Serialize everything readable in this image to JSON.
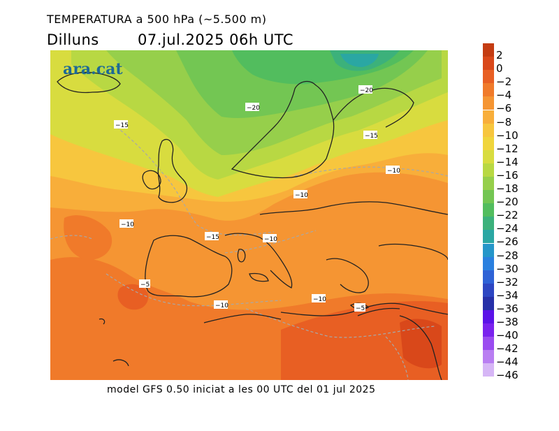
{
  "header": {
    "title": "TEMPERATURA a 500 hPa (~5.500 m)",
    "day": "Dilluns",
    "datetime": "07.jul.2025 06h UTC"
  },
  "logo": "ara.cat",
  "footer": "model GFS 0.50 iniciat a les 00 UTC del 01 jul 2025",
  "colorbar": {
    "labels": [
      "2",
      "0",
      "−2",
      "−4",
      "−6",
      "−8",
      "−10",
      "−12",
      "−14",
      "−16",
      "−18",
      "−20",
      "−22",
      "−24",
      "−26",
      "−28",
      "−30",
      "−32",
      "−34",
      "−36",
      "−38",
      "−40",
      "−42",
      "−44",
      "−46"
    ],
    "colors": [
      "#c43c12",
      "#d9481a",
      "#e85f23",
      "#f07a2a",
      "#f59533",
      "#f8ae3a",
      "#f7c63e",
      "#f0d53c",
      "#d8dc3f",
      "#b8d843",
      "#96cf4b",
      "#73c653",
      "#52bd5e",
      "#3cb17b",
      "#2aa7a3",
      "#2596c9",
      "#2a80df",
      "#2e62d6",
      "#2d46c2",
      "#2630a8",
      "#5b12e8",
      "#7a22ee",
      "#9a4cf0",
      "#b97ef2",
      "#d6b6f6"
    ]
  },
  "map": {
    "isolabels": [
      "−20",
      "−20",
      "−15",
      "−15",
      "−10",
      "−10",
      "−10",
      "−15",
      "−10",
      "−5",
      "−10",
      "−10",
      "−5"
    ]
  }
}
